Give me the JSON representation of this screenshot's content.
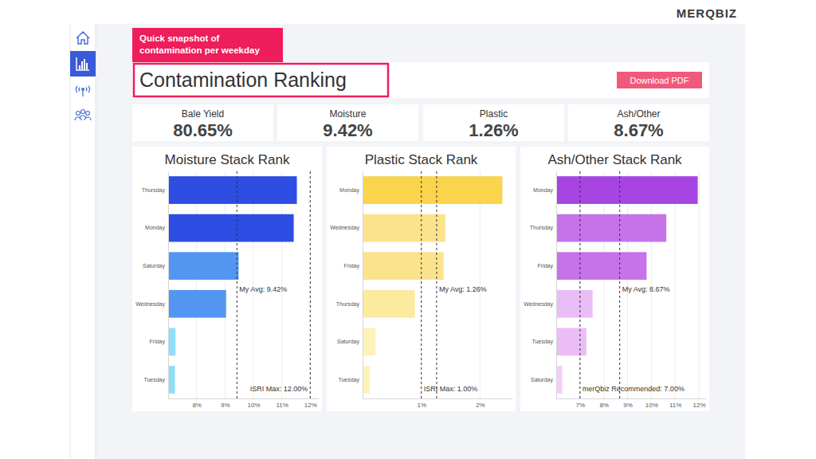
{
  "header": {
    "logo": "MERQBIZ",
    "badge": [
      "Quick snapshot of",
      "contamination per weekday"
    ],
    "title": "Contamination Ranking",
    "button": "Download PDF"
  },
  "kpis": [
    {
      "label": "Bale Yield",
      "value": "80.65%"
    },
    {
      "label": "Moisture",
      "value": "9.42%"
    },
    {
      "label": "Plastic",
      "value": "1.26%"
    },
    {
      "label": "Ash/Other",
      "value": "8.67%"
    }
  ],
  "chart_data": [
    {
      "type": "bar",
      "orientation": "horizontal",
      "grid": true,
      "title": "Moisture Stack Rank",
      "categories": [
        "Thursday",
        "Monday",
        "Saturday",
        "Wednesday",
        "Friday",
        "Tuesday"
      ],
      "values": [
        11.53,
        11.42,
        9.48,
        9.04,
        7.26,
        7.24
      ],
      "colors": [
        "#2d4de3",
        "#2d4de3",
        "#5296f2",
        "#5296f2",
        "#8ee0fa",
        "#8ee0fa"
      ],
      "xlim": [
        7,
        12.3
      ],
      "xticks": [
        {
          "value": 8,
          "label": "8%"
        },
        {
          "value": 9,
          "label": "9%"
        },
        {
          "value": 10,
          "label": "10%"
        },
        {
          "value": 11,
          "label": "11%"
        },
        {
          "value": 12,
          "label": "12%"
        }
      ],
      "reference_lines": [
        {
          "value": 9.42,
          "label": "My Avg: 9.42%"
        },
        {
          "value": 12,
          "label": "ISRI Max: 12.00%"
        }
      ]
    },
    {
      "type": "bar",
      "orientation": "horizontal",
      "grid": true,
      "title": "Plastic Stack Rank",
      "categories": [
        "Monday",
        "Wednesday",
        "Friday",
        "Thursday",
        "Saturday",
        "Tuesday"
      ],
      "values": [
        2.38,
        1.41,
        1.38,
        0.89,
        0.22,
        0.12
      ],
      "colors": [
        "#f9d44c",
        "#fbe38d",
        "#fbe38d",
        "#fcea9f",
        "#fdf1b8",
        "#fdf1b8"
      ],
      "xlim": [
        0,
        2.55
      ],
      "xticks": [
        {
          "value": 1,
          "label": "1%"
        },
        {
          "value": 2,
          "label": "2%"
        }
      ],
      "reference_lines": [
        {
          "value": 1.26,
          "label": "My Avg: 1.26%"
        },
        {
          "value": 1,
          "label": "ISRI Max: 1.00%"
        }
      ]
    },
    {
      "type": "bar",
      "orientation": "horizontal",
      "grid": true,
      "title": "Ash/Other Stack Rank",
      "categories": [
        "Monday",
        "Thursday",
        "Friday",
        "Wednesday",
        "Tuesday",
        "Saturday"
      ],
      "values": [
        11.95,
        10.63,
        9.8,
        7.53,
        7.27,
        6.25
      ],
      "colors": [
        "#a645e2",
        "#c673ea",
        "#c673ea",
        "#ebbdf6",
        "#ebbdf6",
        "#f4cdf8"
      ],
      "xlim": [
        6,
        12.3
      ],
      "xticks": [
        {
          "value": 7,
          "label": "7%"
        },
        {
          "value": 8,
          "label": "8%"
        },
        {
          "value": 9,
          "label": "9%"
        },
        {
          "value": 10,
          "label": "10%"
        },
        {
          "value": 11,
          "label": "11%"
        },
        {
          "value": 12,
          "label": "12%"
        }
      ],
      "reference_lines": [
        {
          "value": 8.67,
          "label": "My Avg: 8.67%"
        },
        {
          "value": 7,
          "label": "merQbiz Recommended: 7.00%"
        }
      ]
    }
  ]
}
